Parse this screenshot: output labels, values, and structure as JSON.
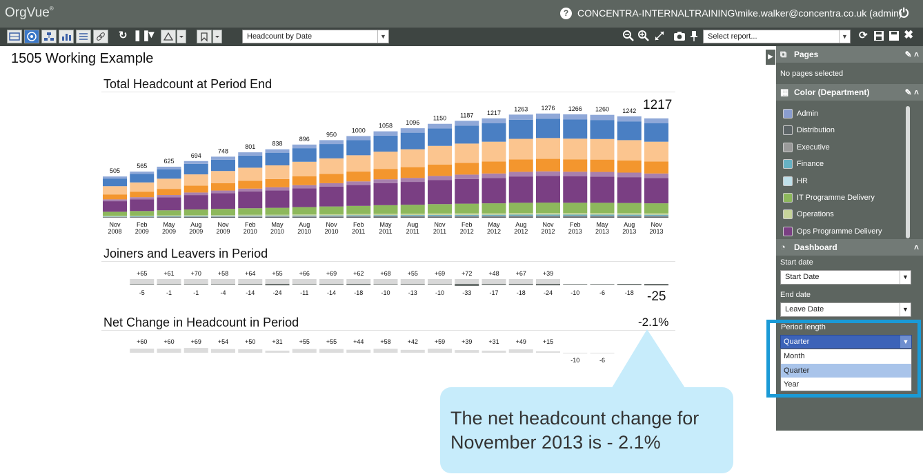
{
  "app": {
    "name": "OrgVue",
    "trademark": "®",
    "user": "CONCENTRA-INTERNALTRAINING\\mike.walker@concentra.co.uk (admin)"
  },
  "toolbar": {
    "report_select": "Headcount by Date",
    "select_report_placeholder": "Select report...",
    "icons": [
      "table-view-icon",
      "tree-view-icon",
      "org-chart-icon",
      "bar-chart-icon",
      "list-view-icon",
      "link-icon",
      "refresh-icon",
      "pause-icon",
      "filter-icon",
      "triangle-icon",
      "bookmark-icon",
      "zoom-out-icon",
      "zoom-in-icon",
      "expand-icon",
      "camera-icon",
      "pin-icon",
      "sync-icon",
      "save-as-icon",
      "save-icon",
      "close-icon"
    ]
  },
  "page": {
    "title": "1505 Working Example"
  },
  "sections": {
    "headcount_title": "Total Headcount at Period End",
    "joiners_title": "Joiners and Leavers in Period",
    "net_title": "Net Change in Headcount in Period",
    "net_last_label": "-2.1%"
  },
  "callout": {
    "text": "The net headcount change for November 2013 is - 2.1%"
  },
  "colors": {
    "Admin": "#8a9dcf",
    "Distribution": "#5c6466",
    "Executive": "#9a9a9a",
    "Finance": "#67b2c4",
    "HR": "#bfe0ea",
    "IT Programme Delivery": "#8db85c",
    "Operations": "#c6d49a",
    "Ops Programme Delivery": "#7a3f83",
    "Ops Purple Light": "#a880ae",
    "Orange": "#f3962e",
    "Peach": "#fbc58f",
    "Blue": "#4a7fc3",
    "Light Blue": "#8fa8d8"
  },
  "chart_data": [
    {
      "type": "bar",
      "title": "Total Headcount at Period End",
      "categories": [
        "Nov 2008",
        "Feb 2009",
        "May 2009",
        "Aug 2009",
        "Nov 2009",
        "Feb 2010",
        "May 2010",
        "Aug 2010",
        "Nov 2010",
        "Feb 2011",
        "May 2011",
        "Aug 2011",
        "Nov 2011",
        "Feb 2012",
        "May 2012",
        "Aug 2012",
        "Nov 2012",
        "Feb 2013",
        "May 2013",
        "Aug 2013",
        "Nov 2013"
      ],
      "values": [
        505,
        565,
        625,
        694,
        748,
        801,
        838,
        896,
        950,
        1000,
        1058,
        1096,
        1150,
        1187,
        1217,
        1263,
        1276,
        1266,
        1260,
        1242,
        1217
      ],
      "stacked": true,
      "color_by": "Department"
    },
    {
      "type": "bar",
      "title": "Joiners and Leavers in Period",
      "categories": [
        "Nov 2008",
        "Feb 2009",
        "May 2009",
        "Aug 2009",
        "Nov 2009",
        "Feb 2010",
        "May 2010",
        "Aug 2010",
        "Nov 2010",
        "Feb 2011",
        "May 2011",
        "Aug 2011",
        "Nov 2011",
        "Feb 2012",
        "May 2012",
        "Aug 2012",
        "Nov 2012",
        "Feb 2013",
        "May 2013",
        "Aug 2013",
        "Nov 2013"
      ],
      "series": [
        {
          "name": "Joiners",
          "values": [
            null,
            65,
            61,
            70,
            58,
            64,
            55,
            66,
            69,
            62,
            68,
            55,
            69,
            72,
            48,
            67,
            39,
            null,
            null,
            null,
            null
          ],
          "labels": [
            "",
            "+65",
            "+61",
            "+70",
            "+58",
            "+64",
            "+55",
            "+66",
            "+69",
            "+62",
            "+68",
            "+55",
            "+69",
            "+72",
            "+48",
            "+67",
            "+39",
            "",
            "",
            "",
            ""
          ]
        },
        {
          "name": "Leavers",
          "values": [
            null,
            -5,
            -1,
            -1,
            -4,
            -14,
            -24,
            -11,
            -14,
            -18,
            -10,
            -13,
            -10,
            -33,
            -17,
            -18,
            -24,
            -10,
            -6,
            -18,
            -25
          ],
          "labels": [
            "",
            "-5",
            "-1",
            "-1",
            "-4",
            "-14",
            "-24",
            "-11",
            "-14",
            "-18",
            "-10",
            "-13",
            "-10",
            "-33",
            "-17",
            "-18",
            "-24",
            "-10",
            "-6",
            "-18",
            "-25"
          ]
        }
      ]
    },
    {
      "type": "bar",
      "title": "Net Change in Headcount in Period",
      "categories": [
        "Nov 2008",
        "Feb 2009",
        "May 2009",
        "Aug 2009",
        "Nov 2009",
        "Feb 2010",
        "May 2010",
        "Aug 2010",
        "Nov 2010",
        "Feb 2011",
        "May 2011",
        "Aug 2011",
        "Nov 2011",
        "Feb 2012",
        "May 2012",
        "Aug 2012",
        "Nov 2012",
        "Feb 2013",
        "May 2013",
        "Aug 2013",
        "Nov 2013"
      ],
      "values": [
        null,
        60,
        60,
        69,
        54,
        50,
        31,
        55,
        55,
        44,
        58,
        42,
        59,
        39,
        31,
        49,
        15,
        -10,
        -6,
        null,
        null
      ],
      "labels": [
        "",
        "+60",
        "+60",
        "+69",
        "+54",
        "+50",
        "+31",
        "+55",
        "+55",
        "+44",
        "+58",
        "+42",
        "+59",
        "+39",
        "+31",
        "+49",
        "+15",
        "-10",
        "-6",
        "",
        ""
      ]
    }
  ],
  "sidepanel": {
    "pages_header": "Pages",
    "pages_text": "No pages selected",
    "color_header": "Color (Department)",
    "legend": [
      {
        "label": "Admin",
        "color": "#8a9dcf"
      },
      {
        "label": "Distribution",
        "color": "#5c6466"
      },
      {
        "label": "Executive",
        "color": "#9a9a9a"
      },
      {
        "label": "Finance",
        "color": "#67b2c4"
      },
      {
        "label": "HR",
        "color": "#bfe0ea"
      },
      {
        "label": "IT Programme Delivery",
        "color": "#8db85c"
      },
      {
        "label": "Operations",
        "color": "#c6d49a"
      },
      {
        "label": "Ops Programme Delivery",
        "color": "#7a3f83"
      }
    ],
    "dashboard_header": "Dashboard",
    "start_date_label": "Start date",
    "start_date_value": "Start Date",
    "end_date_label": "End date",
    "end_date_value": "Leave Date",
    "period_label": "Period length",
    "period_value": "Quarter",
    "period_options": [
      "Month",
      "Quarter",
      "Year"
    ]
  }
}
